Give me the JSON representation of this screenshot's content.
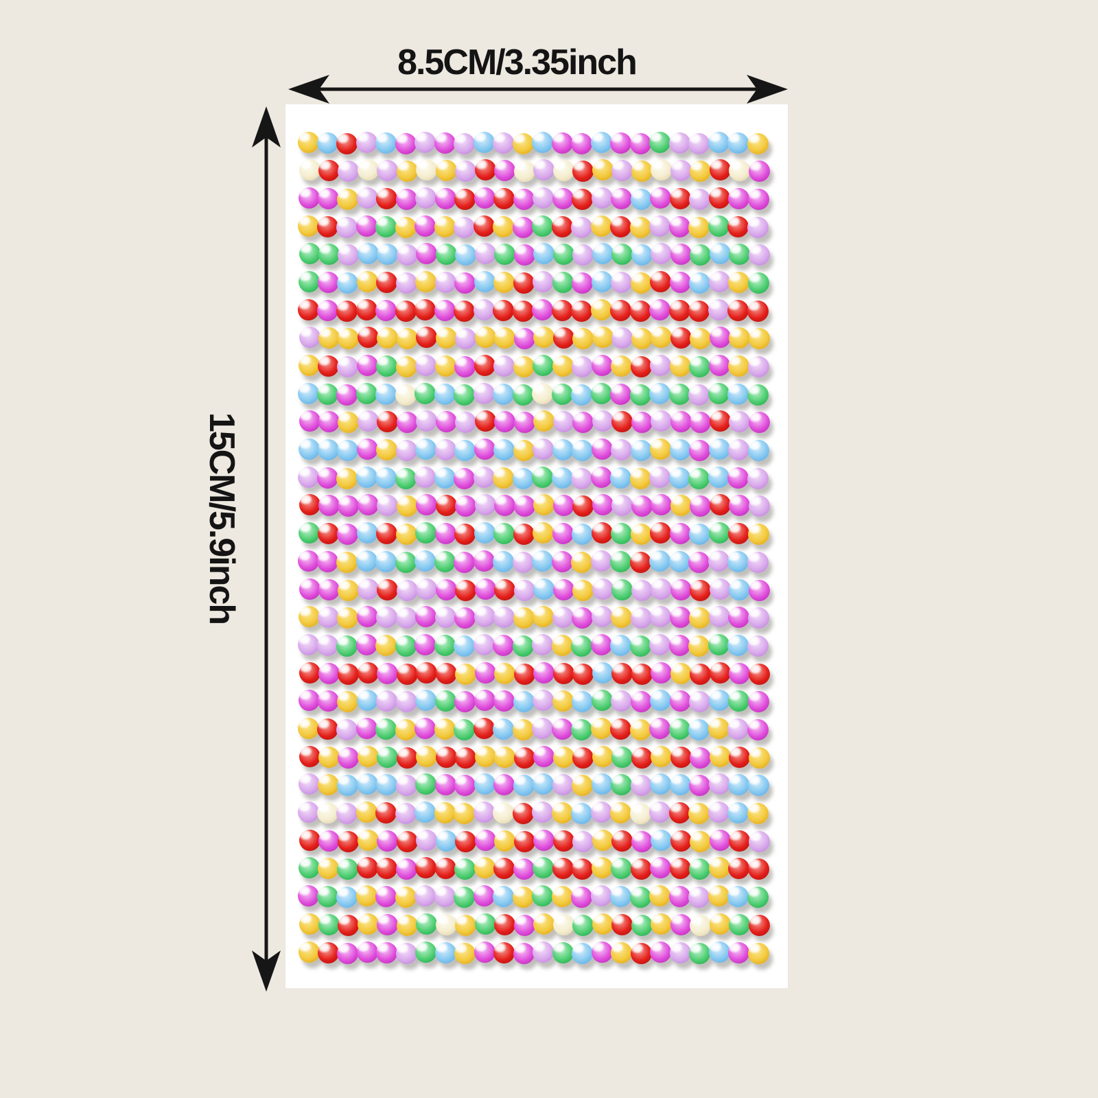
{
  "scene": {
    "background_color": "#ede8e0",
    "description": "product photo of a multicolor self-adhesive pearl sticker sheet with dimension annotations"
  },
  "dimension_labels": {
    "width_label": "8.5CM/3.35inch",
    "height_label": "15CM/5.9inch",
    "arrow_color": "#161616"
  },
  "sticker_sheet": {
    "sheet_color": "#ffffff",
    "rows": 30,
    "pearls_per_row": 24,
    "palette": {
      "Y": {
        "name": "yellow",
        "light": "#FBE793",
        "base": "#F3C93C",
        "dark": "#D79A12"
      },
      "B": {
        "name": "blue",
        "light": "#D6EDFB",
        "base": "#86C9F1",
        "dark": "#57A3DC"
      },
      "R": {
        "name": "red",
        "light": "#F59A93",
        "base": "#E5201B",
        "dark": "#A80D0C"
      },
      "M": {
        "name": "magenta",
        "light": "#F6C3F4",
        "base": "#E04FDC",
        "dark": "#B31FAF"
      },
      "L": {
        "name": "lilac",
        "light": "#F3DFF8",
        "base": "#D9A9EC",
        "dark": "#B57BD0"
      },
      "W": {
        "name": "cream",
        "light": "#FDFBEF",
        "base": "#F4EDCF",
        "dark": "#DECCA0"
      },
      "G": {
        "name": "green",
        "light": "#BCF0CB",
        "base": "#4FCE72",
        "dark": "#17A345"
      }
    },
    "pearl_rows": [
      "YBRLBMLMLBLYBMMBMMGLLBBY",
      "WRLWLYWYLRMWLWRYLYWLYRWM",
      "MMYLRMLMRMRMLMRLMBMRLRMM",
      "YRLMGYMYLRYMGRLYRYLMYGRL",
      "GGLBBLMGBLGMBGLBGBLMGBGL",
      "GMBYRLYLMBYRLGMBLYRMBLYG",
      "RMRRMRRMRLRRMRRYRRMRRLRR",
      "LYYRYYRYLYYMYRYYLYYRYMYY",
      "YRLMGYLYMRLYGYLMYRLYGMYL",
      "BGMGBWGBGLBGWGBGMGBGLGBG",
      "MMYLRMLMLRMMYLMLRMLMMRLM",
      "BBBMYLBLBMBYLBBMLBYBMBLB",
      "LMYBBGLBMLYBGBLMBYLBGBML",
      "RMMMLYMRMLMMYMRMLMMYMRML",
      "GRMBRYGMRBGRYMBRGYRMBGRY",
      "MMYBBGBGMMBLBMYLGRBBMLBL",
      "MMYLRLLMRMRLBMYLGLLMRLBM",
      "YLYMLLMLMLLYYLMLYLLMYLML",
      "LLGMYGMGBLMGLYGMBGLMYGBL",
      "RMRRMRRRYMYRMRRBRRMYRRMR",
      "MMYBLLBGMMMBLYBGLMBMLBGM",
      "YRLMGYMYGRBYLMGYRYMGBYLM",
      "RYMYGRYRRYYRMYRYGRYRMYRY",
      "LYBBBLGMMBMBBLYBGLBBMLBB",
      "LWLYRLBYYLWRLYBLYWLRYLBY",
      "RMRYMRLBRMYRMRLYRMBRYMRL",
      "GYGRRMRRGYRMGRRYGRMRGYRR",
      "MGBYMYLLGMBYGYMLBGYMLYBG",
      "YGRYMYGWYGRMYWGYRGYMWYGR",
      "YRMMMLGBYMRMLGBMYRMLGBMY"
    ]
  }
}
